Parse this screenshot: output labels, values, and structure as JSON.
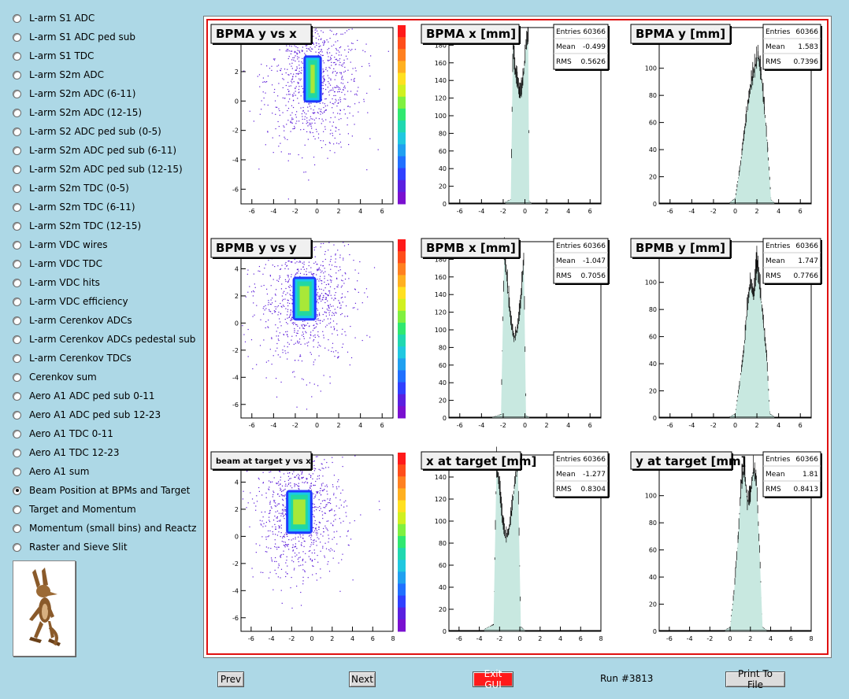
{
  "sidebar": {
    "items": [
      {
        "label": "L-arm S1 ADC",
        "checked": false
      },
      {
        "label": "L-arm S1 ADC ped sub",
        "checked": false
      },
      {
        "label": "L-arm S1 TDC",
        "checked": false
      },
      {
        "label": "L-arm S2m ADC",
        "checked": false
      },
      {
        "label": "L-arm S2m ADC (6-11)",
        "checked": false
      },
      {
        "label": "L-arm S2m ADC (12-15)",
        "checked": false
      },
      {
        "label": "L-arm S2 ADC ped sub (0-5)",
        "checked": false
      },
      {
        "label": "L-arm S2m ADC ped sub (6-11)",
        "checked": false
      },
      {
        "label": "L-arm S2m ADC ped sub (12-15)",
        "checked": false
      },
      {
        "label": "L-arm S2m TDC (0-5)",
        "checked": false
      },
      {
        "label": "L-arm S2m TDC (6-11)",
        "checked": false
      },
      {
        "label": "L-arm S2m TDC (12-15)",
        "checked": false
      },
      {
        "label": "L-arm VDC wires",
        "checked": false
      },
      {
        "label": "L-arm VDC TDC",
        "checked": false
      },
      {
        "label": "L-arm VDC hits",
        "checked": false
      },
      {
        "label": "L-arm VDC efficiency",
        "checked": false
      },
      {
        "label": "L-arm Cerenkov ADCs",
        "checked": false
      },
      {
        "label": "L-arm Cerenkov ADCs pedestal sub",
        "checked": false
      },
      {
        "label": "L-arm Cerenkov TDCs",
        "checked": false
      },
      {
        "label": "Cerenkov sum",
        "checked": false
      },
      {
        "label": "Aero A1 ADC ped sub 0-11",
        "checked": false
      },
      {
        "label": "Aero A1 ADC ped sub 12-23",
        "checked": false
      },
      {
        "label": "Aero A1 TDC 0-11",
        "checked": false
      },
      {
        "label": "Aero A1 TDC 12-23",
        "checked": false
      },
      {
        "label": "Aero A1 sum",
        "checked": false
      },
      {
        "label": "Beam Position at BPMs and Target",
        "checked": true
      },
      {
        "label": "Target and Momentum",
        "checked": false
      },
      {
        "label": "Momentum (small bins) and Reactz",
        "checked": false
      },
      {
        "label": "Raster and Sieve Slit",
        "checked": false
      }
    ],
    "logo_icon": "coyote-mascot-icon"
  },
  "bottom": {
    "prev": "Prev",
    "next": "Next",
    "exit": "Exit GUI",
    "run": "Run #3813",
    "print": "Print To File"
  },
  "colors": {
    "background": "#add8e6",
    "frame": "#e01010",
    "exit": "#ff1a1a",
    "hist_fill": "#c8e8e0"
  },
  "chart_data": [
    {
      "type": "heatmap",
      "title": "BPMA y vs x",
      "xlim": [
        -7,
        7
      ],
      "ylim": [
        -7,
        5
      ],
      "xticks": [
        -6,
        -4,
        -2,
        0,
        2,
        4,
        6
      ],
      "yticks": [
        -6,
        -4,
        -2,
        0,
        2,
        4
      ],
      "core": {
        "x": [
          -1.1,
          0.3
        ],
        "y": [
          0,
          3
        ]
      }
    },
    {
      "type": "bar",
      "title": "BPMA x [mm]",
      "stats": {
        "Entries": "60366",
        "Mean": "-0.499",
        "RMS": "0.5626"
      },
      "xlim": [
        -7,
        7
      ],
      "ylim": [
        0,
        200
      ],
      "xticks": [
        -6,
        -4,
        -2,
        0,
        2,
        4,
        6
      ],
      "yticks": [
        0,
        20,
        40,
        60,
        80,
        100,
        120,
        140,
        160,
        180
      ],
      "profile": {
        "x": [
          -1.8,
          -1.3,
          -1.1,
          -0.9,
          -0.7,
          -0.5,
          -0.3,
          -0.1,
          0.1,
          0.3,
          0.4,
          0.6
        ],
        "y": [
          2,
          5,
          180,
          150,
          140,
          125,
          130,
          150,
          180,
          190,
          3,
          1
        ]
      }
    },
    {
      "type": "bar",
      "title": "BPMA y [mm]",
      "stats": {
        "Entries": "60366",
        "Mean": "1.583",
        "RMS": "0.7396"
      },
      "xlim": [
        -7,
        7
      ],
      "ylim": [
        0,
        130
      ],
      "xticks": [
        -6,
        -4,
        -2,
        0,
        2,
        4,
        6
      ],
      "yticks": [
        0,
        20,
        40,
        60,
        80,
        100,
        120
      ],
      "profile": {
        "x": [
          -0.5,
          0,
          0.5,
          0.8,
          1.2,
          1.5,
          1.8,
          2.1,
          2.4,
          2.7,
          3,
          3.3,
          3.6
        ],
        "y": [
          1,
          4,
          30,
          50,
          75,
          90,
          100,
          110,
          95,
          70,
          40,
          3,
          1
        ]
      }
    },
    {
      "type": "heatmap",
      "title": "BPMB y vs y",
      "xlim": [
        -7,
        7
      ],
      "ylim": [
        -7,
        6
      ],
      "xticks": [
        -6,
        -4,
        -2,
        0,
        2,
        4,
        6
      ],
      "yticks": [
        -6,
        -4,
        -2,
        0,
        2,
        4
      ],
      "core": {
        "x": [
          -2.1,
          -0.2
        ],
        "y": [
          0.3,
          3.3
        ]
      }
    },
    {
      "type": "bar",
      "title": "BPMB x [mm]",
      "stats": {
        "Entries": "60366",
        "Mean": "-1.047",
        "RMS": "0.7056"
      },
      "xlim": [
        -7,
        7
      ],
      "ylim": [
        0,
        200
      ],
      "xticks": [
        -6,
        -4,
        -2,
        0,
        2,
        4,
        6
      ],
      "yticks": [
        0,
        20,
        40,
        60,
        80,
        100,
        120,
        140,
        160,
        180
      ],
      "profile": {
        "x": [
          -3,
          -2.2,
          -1.9,
          -1.6,
          -1.3,
          -1.0,
          -0.7,
          -0.4,
          -0.1,
          0.1,
          0.4
        ],
        "y": [
          1,
          4,
          190,
          150,
          110,
          90,
          100,
          130,
          180,
          3,
          1
        ]
      }
    },
    {
      "type": "bar",
      "title": "BPMB y [mm]",
      "stats": {
        "Entries": "60366",
        "Mean": "1.747",
        "RMS": "0.7766"
      },
      "xlim": [
        -7,
        7
      ],
      "ylim": [
        0,
        130
      ],
      "xticks": [
        -6,
        -4,
        -2,
        0,
        2,
        4,
        6
      ],
      "yticks": [
        0,
        20,
        40,
        60,
        80,
        100,
        120
      ],
      "profile": {
        "x": [
          -0.5,
          0,
          0.4,
          0.8,
          1.1,
          1.4,
          1.7,
          2,
          2.3,
          2.6,
          2.9,
          3.2,
          3.6
        ],
        "y": [
          1,
          3,
          25,
          50,
          80,
          100,
          90,
          115,
          95,
          70,
          45,
          3,
          1
        ]
      }
    },
    {
      "type": "heatmap",
      "title": "beam at target y vs x",
      "xlim": [
        -7,
        8
      ],
      "ylim": [
        -7,
        6
      ],
      "xticks": [
        -6,
        -4,
        -2,
        0,
        2,
        4,
        6,
        8
      ],
      "yticks": [
        -6,
        -4,
        -2,
        0,
        2,
        4
      ],
      "core": {
        "x": [
          -2.4,
          -0.1
        ],
        "y": [
          0.3,
          3.3
        ]
      }
    },
    {
      "type": "bar",
      "title": "x at target [mm]",
      "stats": {
        "Entries": "60366",
        "Mean": "-1.277",
        "RMS": "0.8304"
      },
      "xlim": [
        -7,
        8
      ],
      "ylim": [
        0,
        160
      ],
      "xticks": [
        -6,
        -4,
        -2,
        0,
        2,
        4,
        6,
        8
      ],
      "yticks": [
        0,
        20,
        40,
        60,
        80,
        100,
        120,
        140
      ],
      "profile": {
        "x": [
          -3.5,
          -2.6,
          -2.3,
          -2.0,
          -1.7,
          -1.4,
          -1.1,
          -0.8,
          -0.5,
          -0.2,
          0.1,
          0.5
        ],
        "y": [
          2,
          6,
          150,
          130,
          100,
          85,
          90,
          110,
          135,
          150,
          4,
          1
        ]
      }
    },
    {
      "type": "bar",
      "title": "y at target [mm]",
      "stats": {
        "Entries": "60366",
        "Mean": "1.81",
        "RMS": "0.8413"
      },
      "xlim": [
        -7,
        8
      ],
      "ylim": [
        0,
        130
      ],
      "xticks": [
        -6,
        -4,
        -2,
        0,
        2,
        4,
        6,
        8
      ],
      "yticks": [
        0,
        20,
        40,
        60,
        80,
        100,
        120
      ],
      "profile": {
        "x": [
          -0.5,
          0,
          0.4,
          0.8,
          1.1,
          1.4,
          1.7,
          2,
          2.3,
          2.6,
          2.9,
          3.2,
          3.6
        ],
        "y": [
          1,
          3,
          30,
          70,
          110,
          120,
          95,
          100,
          120,
          110,
          60,
          3,
          1
        ]
      }
    }
  ]
}
